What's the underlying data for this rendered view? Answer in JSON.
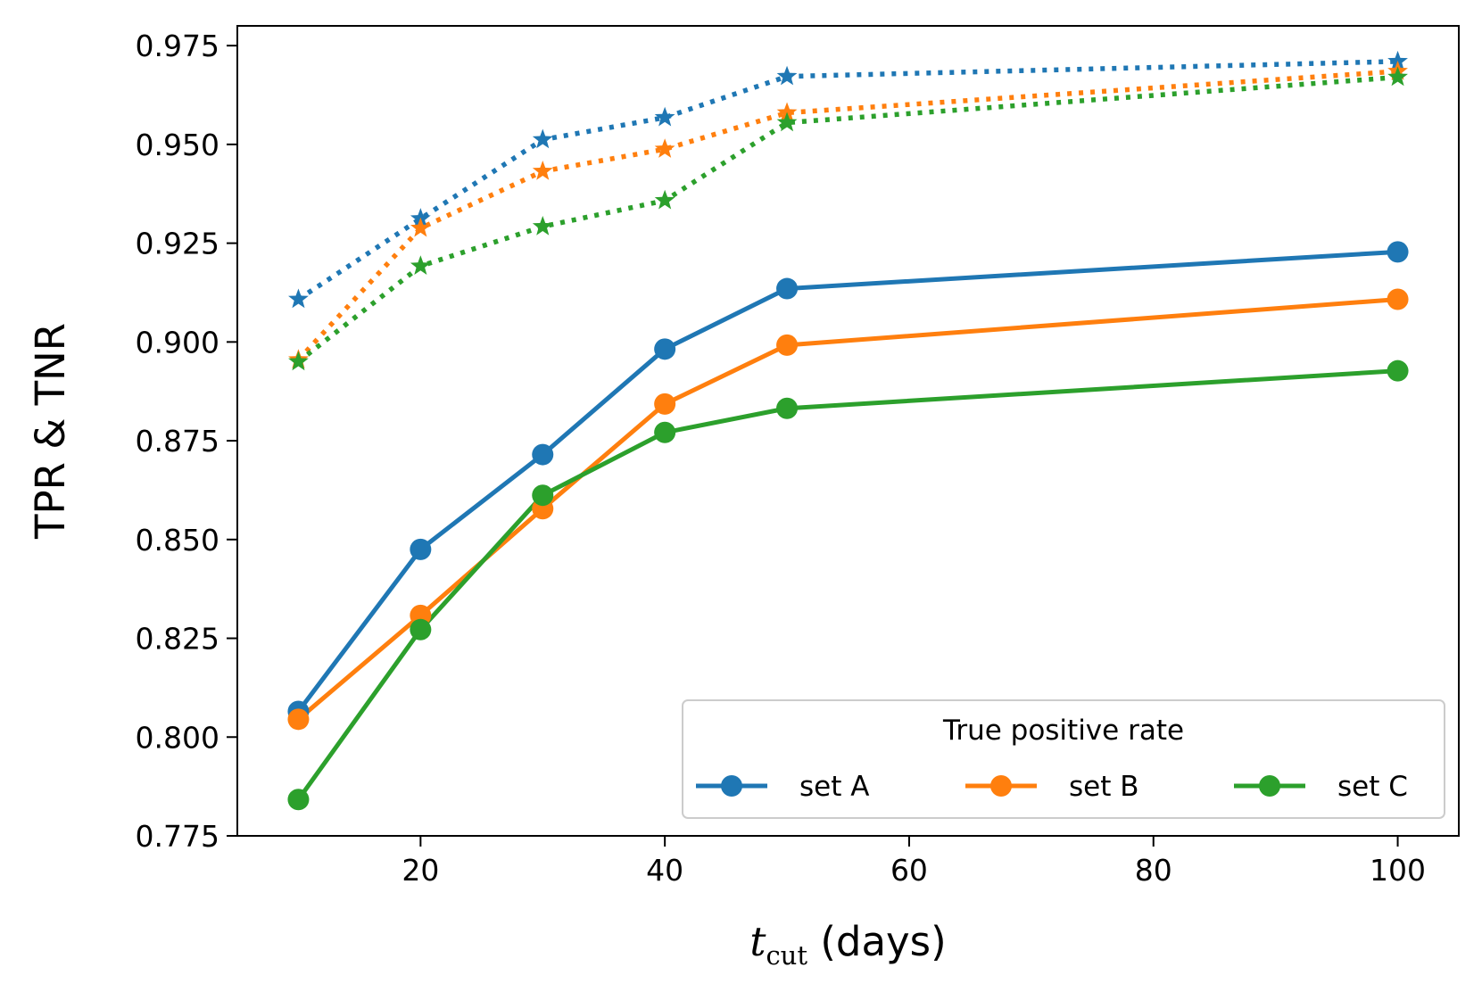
{
  "chart_data": {
    "type": "line",
    "title": "",
    "xlabel": {
      "symbol": "t",
      "subscript": "cut",
      "suffix": " (days)"
    },
    "ylabel": "TPR & TNR",
    "xlim": [
      5,
      105
    ],
    "ylim": [
      0.775,
      0.98
    ],
    "xticks": [
      20,
      40,
      60,
      80,
      100
    ],
    "yticks": [
      0.775,
      0.8,
      0.825,
      0.85,
      0.875,
      0.9,
      0.925,
      0.95,
      0.975
    ],
    "ytick_labels": [
      "0.775",
      "0.800",
      "0.825",
      "0.850",
      "0.875",
      "0.900",
      "0.925",
      "0.950",
      "0.975"
    ],
    "x": [
      10,
      20,
      30,
      40,
      50,
      100
    ],
    "grid": false,
    "legend": {
      "title": "True positive rate",
      "placement": "lower-right",
      "columns": 3
    },
    "series": [
      {
        "name": "set A",
        "metric": "TPR",
        "style": "solid",
        "marker": "circle",
        "color": "#1f77b4",
        "values": [
          0.8065,
          0.8475,
          0.8715,
          0.8982,
          0.9135,
          0.9228
        ]
      },
      {
        "name": "set B",
        "metric": "TPR",
        "style": "solid",
        "marker": "circle",
        "color": "#ff7f0e",
        "values": [
          0.8045,
          0.8308,
          0.8578,
          0.8843,
          0.8992,
          0.9108
        ]
      },
      {
        "name": "set C",
        "metric": "TPR",
        "style": "solid",
        "marker": "circle",
        "color": "#2ca02c",
        "values": [
          0.7842,
          0.8272,
          0.8612,
          0.8771,
          0.8832,
          0.8927
        ]
      },
      {
        "name": "set A",
        "metric": "TNR",
        "style": "dotted",
        "marker": "star",
        "color": "#1f77b4",
        "values": [
          0.9108,
          0.9312,
          0.9512,
          0.9568,
          0.9672,
          0.971
        ]
      },
      {
        "name": "set B",
        "metric": "TNR",
        "style": "dotted",
        "marker": "star",
        "color": "#ff7f0e",
        "values": [
          0.8955,
          0.9288,
          0.9432,
          0.9488,
          0.958,
          0.9685
        ]
      },
      {
        "name": "set C",
        "metric": "TNR",
        "style": "dotted",
        "marker": "star",
        "color": "#2ca02c",
        "values": [
          0.895,
          0.9192,
          0.9292,
          0.9358,
          0.9555,
          0.967
        ]
      }
    ]
  }
}
